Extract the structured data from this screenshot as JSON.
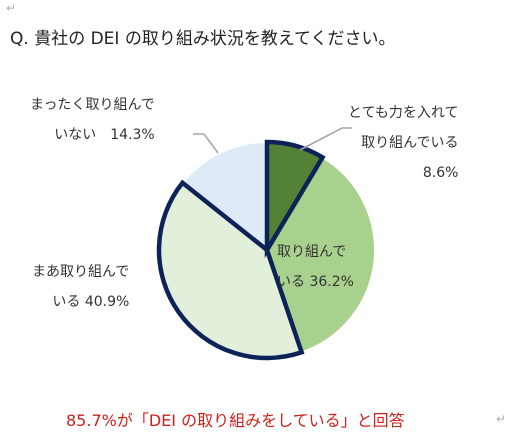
{
  "page": {
    "title": "Q. 貴社の DEI の取り組み状況を教えてください。",
    "footnote": "85.7%が「DEI の取り組みをしている」と回答",
    "return_mark": "↵"
  },
  "chart_data": {
    "type": "pie",
    "title": "Q. 貴社の DEI の取り組み状況を教えてください。",
    "start_angle_deg": 0,
    "direction": "clockwise",
    "slices": [
      {
        "label_lines": [
          "とても力を入れて",
          "取り組んでいる",
          "8.6%"
        ],
        "value": 8.6,
        "color": "#538135",
        "highlighted": true
      },
      {
        "label_lines": [
          "取り組んで",
          "いる 36.2%"
        ],
        "value": 36.2,
        "color": "#a9d18e",
        "highlighted": false
      },
      {
        "label_lines": [
          "まあ取り組んで",
          "いる 40.9%"
        ],
        "value": 40.9,
        "color": "#e2efda",
        "highlighted": true
      },
      {
        "label_lines": [
          "まったく取り組んで",
          "いない　14.3%"
        ],
        "value": 14.3,
        "color": "#deebf7",
        "highlighted": false
      }
    ],
    "highlight_color": "#0d2358",
    "leader_color": "#a6a6a6"
  }
}
